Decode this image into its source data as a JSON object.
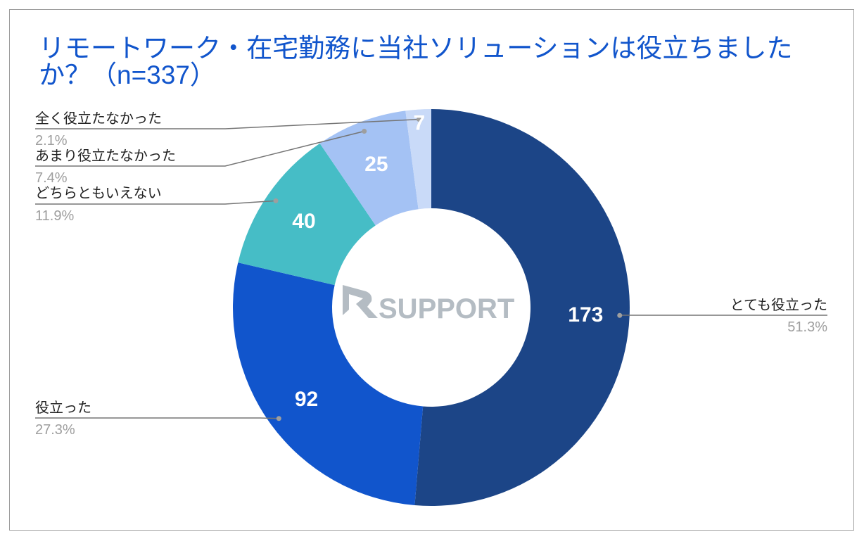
{
  "chart_data": {
    "type": "pie",
    "donut": true,
    "title": "リモートワーク・在宅勤務に当社ソリューションは役立ちましたか？（n=337）",
    "categories": [
      "とても役立った",
      "役立った",
      "どちらともいえない",
      "あまり役立たなかった",
      "全く役立たなかった"
    ],
    "values": [
      173,
      92,
      40,
      25,
      7
    ],
    "percent_labels": [
      "51.3%",
      "27.3%",
      "11.9%",
      "7.4%",
      "2.1%"
    ],
    "colors": [
      "#1c4587",
      "#1155cc",
      "#46bdc6",
      "#a4c2f4",
      "#c9daf8"
    ],
    "legend": "labeled leader lines",
    "watermark": "RSUPPORT"
  }
}
